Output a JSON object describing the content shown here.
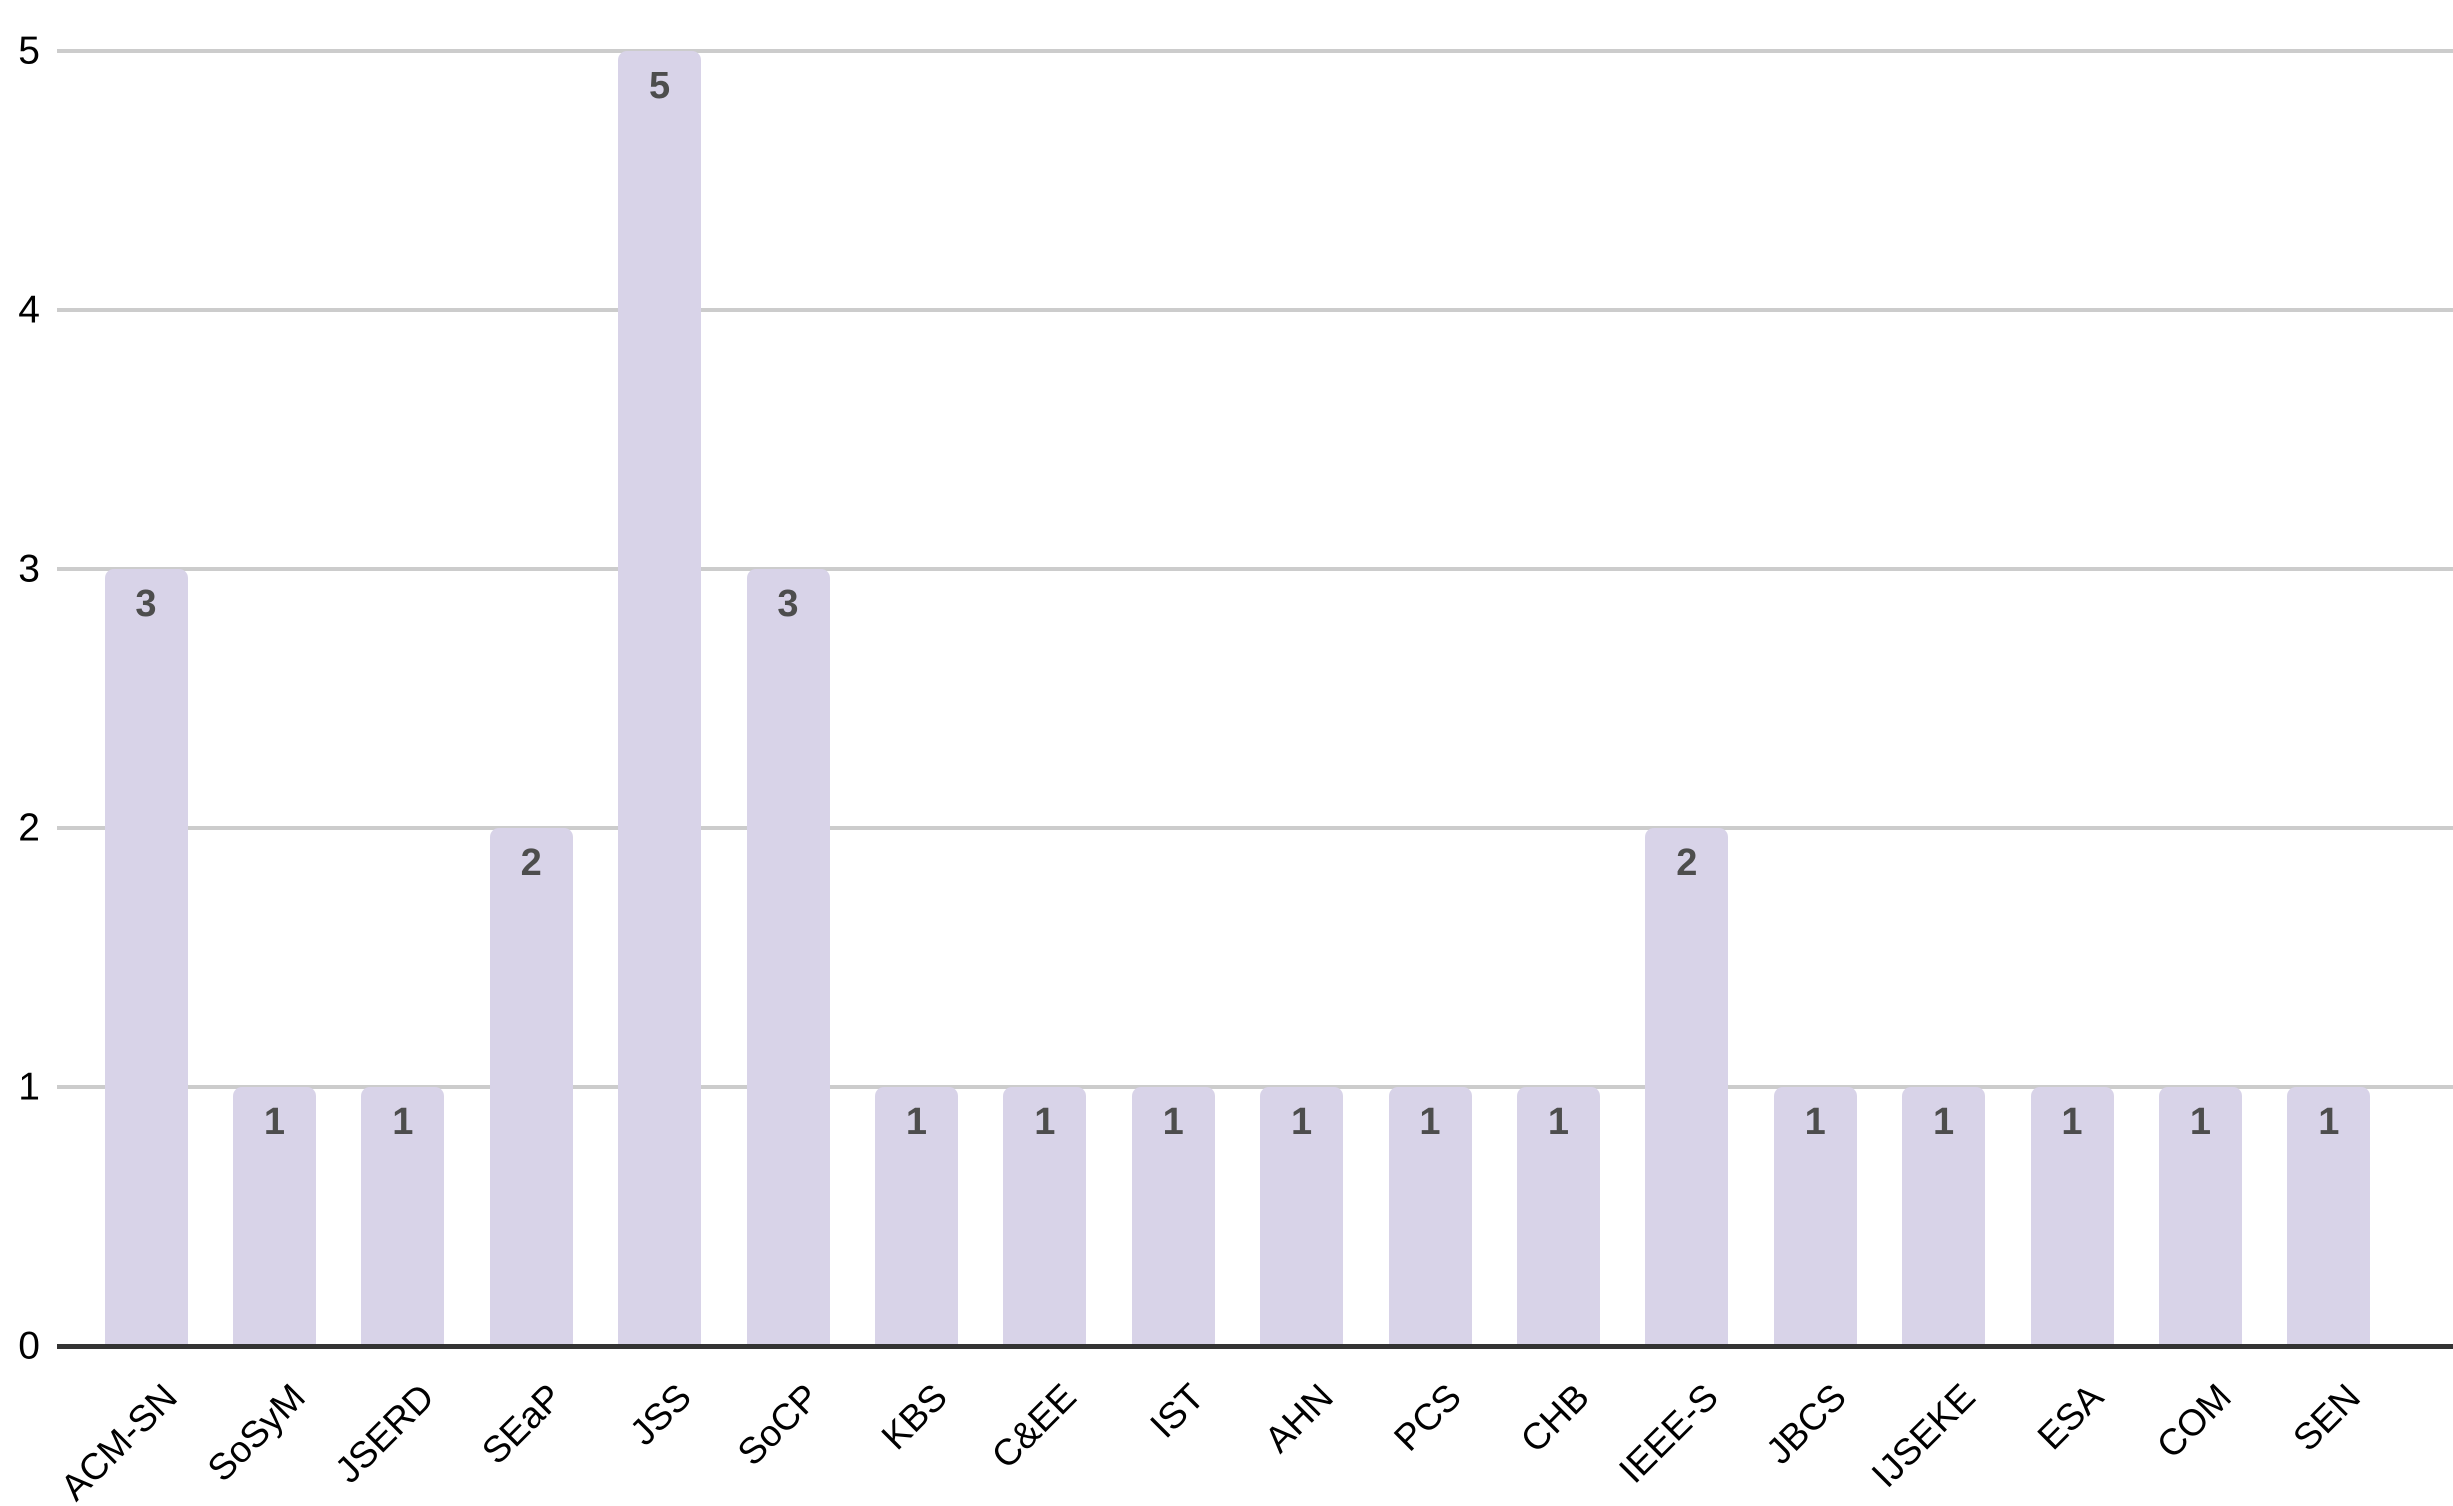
{
  "chart_data": {
    "type": "bar",
    "categories": [
      "ACM-SN",
      "SoSyM",
      "JSERD",
      "SEaP",
      "JSS",
      "SoCP",
      "KBS",
      "C&EE",
      "IST",
      "AHN",
      "PCS",
      "CHB",
      "IEEE-S",
      "JBCS",
      "IJSEKE",
      "ESA",
      "COM",
      "SEN"
    ],
    "values": [
      3,
      1,
      1,
      2,
      5,
      3,
      1,
      1,
      1,
      1,
      1,
      1,
      2,
      1,
      1,
      1,
      1,
      1
    ],
    "title": "",
    "xlabel": "",
    "ylabel": "",
    "ylim": [
      0,
      5
    ],
    "yticks": [
      0,
      1,
      2,
      3,
      4,
      5
    ],
    "grid": true,
    "legend": "none",
    "bar_labels_inside_top": true,
    "x_labels_rotated_degrees": 45,
    "colors": {
      "bar": "#d8d3e8",
      "bar_value_label": "#4d4d4d",
      "gridline": "#cccccc",
      "axis_line": "#333333",
      "tick_label": "#000000",
      "background": "#ffffff"
    }
  }
}
